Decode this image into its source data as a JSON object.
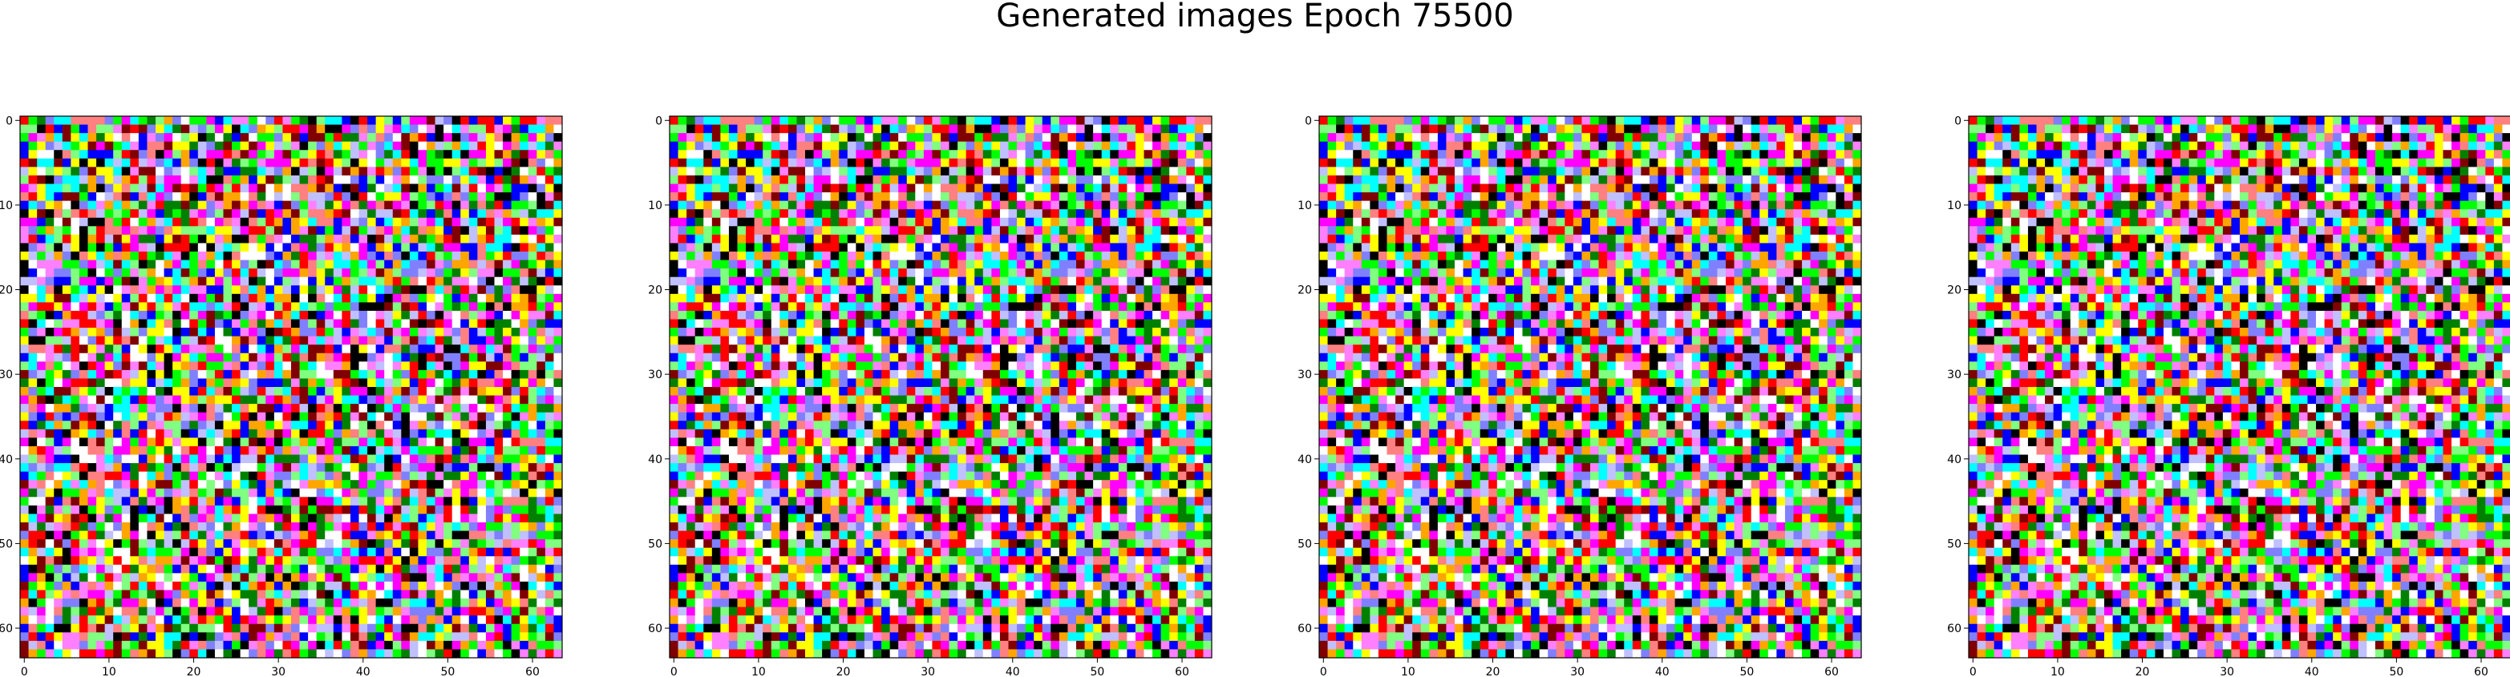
{
  "figure": {
    "title": "Generated images Epoch 75500"
  },
  "chart_data": [
    {
      "type": "heatmap",
      "title": "",
      "xlabel": "",
      "ylabel": "",
      "grid_size": [
        64,
        64
      ],
      "xlim": [
        0,
        64
      ],
      "ylim": [
        64,
        0
      ],
      "x_ticks": [
        "0",
        "10",
        "20",
        "30",
        "40",
        "50",
        "60"
      ],
      "y_ticks": [
        "0",
        "10",
        "20",
        "30",
        "40",
        "50",
        "60"
      ],
      "palette": [
        "#000000",
        "#ffffff",
        "#ff0000",
        "#00ff00",
        "#0000ff",
        "#ffff00",
        "#00ffff",
        "#ff00ff",
        "#ff8080",
        "#80ff80",
        "#8080ff",
        "#ff80ff",
        "#008000",
        "#800000",
        "#ffa500",
        "#c0c0ff"
      ],
      "pixels": "random noise (RGB), 64x64"
    },
    {
      "type": "heatmap",
      "title": "",
      "xlabel": "",
      "ylabel": "",
      "grid_size": [
        64,
        64
      ],
      "xlim": [
        0,
        64
      ],
      "ylim": [
        64,
        0
      ],
      "x_ticks": [
        "0",
        "10",
        "20",
        "30",
        "40",
        "50",
        "60"
      ],
      "y_ticks": [
        "0",
        "10",
        "20",
        "30",
        "40",
        "50",
        "60"
      ],
      "palette": [
        "#000000",
        "#ffffff",
        "#ff0000",
        "#00ff00",
        "#0000ff",
        "#ffff00",
        "#00ffff",
        "#ff00ff",
        "#ff8080",
        "#80ff80",
        "#8080ff",
        "#ff80ff",
        "#008000",
        "#800000",
        "#ffa500",
        "#c0c0ff"
      ],
      "pixels": "random noise (RGB), 64x64"
    },
    {
      "type": "heatmap",
      "title": "",
      "xlabel": "",
      "ylabel": "",
      "grid_size": [
        64,
        64
      ],
      "xlim": [
        0,
        64
      ],
      "ylim": [
        64,
        0
      ],
      "x_ticks": [
        "0",
        "10",
        "20",
        "30",
        "40",
        "50",
        "60"
      ],
      "y_ticks": [
        "0",
        "10",
        "20",
        "30",
        "40",
        "50",
        "60"
      ],
      "palette": [
        "#000000",
        "#ffffff",
        "#ff0000",
        "#00ff00",
        "#0000ff",
        "#ffff00",
        "#00ffff",
        "#ff00ff",
        "#ff8080",
        "#80ff80",
        "#8080ff",
        "#ff80ff",
        "#008000",
        "#800000",
        "#ffa500",
        "#c0c0ff"
      ],
      "pixels": "random noise (RGB), 64x64"
    },
    {
      "type": "heatmap",
      "title": "",
      "xlabel": "",
      "ylabel": "",
      "grid_size": [
        64,
        64
      ],
      "xlim": [
        0,
        64
      ],
      "ylim": [
        64,
        0
      ],
      "x_ticks": [
        "0",
        "10",
        "20",
        "30",
        "40",
        "50",
        "60"
      ],
      "y_ticks": [
        "0",
        "10",
        "20",
        "30",
        "40",
        "50",
        "60"
      ],
      "palette": [
        "#000000",
        "#ffffff",
        "#ff0000",
        "#00ff00",
        "#0000ff",
        "#ffff00",
        "#00ffff",
        "#ff00ff",
        "#ff8080",
        "#80ff80",
        "#8080ff",
        "#ff80ff",
        "#008000",
        "#800000",
        "#ffa500",
        "#c0c0ff"
      ],
      "pixels": "random noise (RGB), 64x64"
    }
  ]
}
